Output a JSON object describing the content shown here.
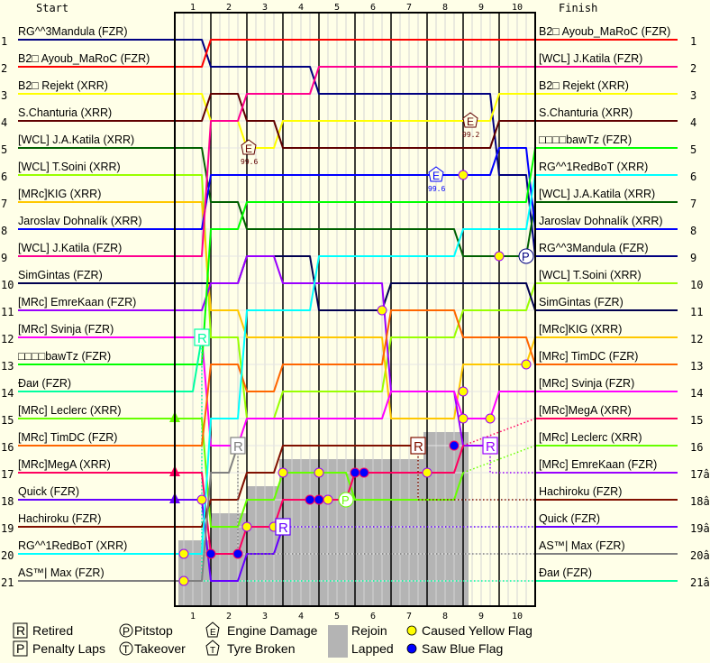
{
  "chart_data": {
    "type": "line",
    "header_start": "Start",
    "header_finish": "Finish",
    "x_ticks": [
      "1",
      "2",
      "3",
      "4",
      "5",
      "6",
      "7",
      "8",
      "9",
      "10"
    ],
    "laps": 10,
    "positions": 21,
    "grid": true,
    "y_inverted": true,
    "colors": {
      "background": "#FFFFE8",
      "lapped": "#B4B4B4",
      "yellow_flag": "#FFFF00",
      "blue_flag": "#0000FF"
    },
    "drivers": [
      {
        "name": "RG^^3Mandula (FZR)",
        "color": "#000080",
        "positions": [
          1,
          2,
          2,
          2,
          3,
          3,
          3,
          3,
          3,
          6,
          9
        ]
      },
      {
        "name": "B2□ Ayoub_MaRoC (FZR)",
        "color": "#FF0000",
        "positions": [
          2,
          1,
          1,
          1,
          1,
          1,
          1,
          1,
          1,
          1,
          1
        ]
      },
      {
        "name": "B2□ Rejekt (XRR)",
        "color": "#FFFF00",
        "positions": [
          3,
          4,
          5,
          4,
          4,
          4,
          4,
          4,
          4,
          3,
          3
        ]
      },
      {
        "name": "S.Chanturia (XRR)",
        "color": "#600000",
        "positions": [
          4,
          3,
          4,
          5,
          5,
          5,
          5,
          5,
          5,
          4,
          4
        ]
      },
      {
        "name": "[WCL] J.A.Katila (XRR)",
        "color": "#006000",
        "positions": [
          5,
          7,
          8,
          8,
          8,
          8,
          8,
          8,
          9,
          9,
          7
        ]
      },
      {
        "name": "[WCL] T.Soini (XRR)",
        "color": "#99FF00",
        "positions": [
          6,
          12,
          15,
          14,
          14,
          14,
          12,
          12,
          11,
          11,
          10
        ]
      },
      {
        "name": "[MRc]KIG (XRR)",
        "color": "#FFC800",
        "positions": [
          7,
          11,
          12,
          12,
          12,
          12,
          15,
          15,
          13,
          13,
          12
        ]
      },
      {
        "name": "Jaroslav Dohnalík (XRR)",
        "color": "#0000FF",
        "positions": [
          8,
          6,
          6,
          6,
          6,
          6,
          6,
          6,
          6,
          5,
          8
        ]
      },
      {
        "name": "[WCL] J.Katila (FZR)",
        "color": "#FF0090",
        "positions": [
          9,
          4,
          3,
          3,
          2,
          2,
          2,
          2,
          2,
          2,
          2
        ]
      },
      {
        "name": "SimGintas (FZR)",
        "color": "#000050",
        "positions": [
          10,
          10,
          9,
          9,
          11,
          11,
          10,
          10,
          10,
          10,
          11
        ]
      },
      {
        "name": "[MRc] EmreKaan (FZR)",
        "color": "#9900FF",
        "positions": [
          11,
          10,
          9,
          10,
          10,
          10,
          14,
          14,
          16
        ],
        "stop": {
          "lap": 8.75,
          "pos": 16,
          "reason": "retired"
        },
        "finish": 17
      },
      {
        "name": "[MRc] Svinja (FZR)",
        "color": "#FF00FF",
        "positions": [
          12,
          16,
          15,
          15,
          15,
          15,
          14,
          14,
          15,
          14,
          14
        ]
      },
      {
        "name": "□□□□bawTz (FZR)",
        "color": "#00FF00",
        "positions": [
          13,
          8,
          7,
          7,
          7,
          7,
          7,
          7,
          7,
          7,
          5
        ]
      },
      {
        "name": "Đaи (FZR)",
        "color": "#00FFA0",
        "positions": [
          14
        ],
        "stop": {
          "lap": 0.75,
          "pos": 12,
          "reason": "retired"
        },
        "finish": 21
      },
      {
        "name": "[MRc] Leclerc (XRR)",
        "color": "#66FF00",
        "positions": [
          15,
          19,
          18,
          17,
          17,
          18,
          18,
          18,
          17
        ],
        "stop": {
          "lap": 8,
          "pos": 17,
          "reason": "lapped"
        },
        "finish": 16,
        "rejoin": true
      },
      {
        "name": "[MRc] TimDC (FZR)",
        "color": "#FF6600",
        "positions": [
          16,
          13,
          14,
          13,
          13,
          13,
          11,
          11,
          12,
          12,
          13
        ]
      },
      {
        "name": "[MRc]MegA (XRR)",
        "color": "#FF0060",
        "positions": [
          17,
          20,
          19,
          18,
          18,
          17,
          17,
          17,
          16
        ],
        "stop": {
          "lap": 8,
          "pos": 16,
          "reason": "lapped"
        },
        "finish": 15,
        "rejoin": true
      },
      {
        "name": "Quick (FZR)",
        "color": "#6600FF",
        "positions": [
          18,
          21,
          20,
          19
        ],
        "stop": {
          "lap": 3,
          "pos": 19,
          "reason": "retired"
        },
        "finish": 19,
        "rejoin": true
      },
      {
        "name": "Hachiroku (FZR)",
        "color": "#801000",
        "positions": [
          19,
          18,
          17,
          16,
          16,
          16,
          16
        ],
        "stop": {
          "lap": 6.75,
          "pos": 16,
          "reason": "retired"
        },
        "finish": 18
      },
      {
        "name": "RG^^1RedBoT (XRR)",
        "color": "#00FFFF",
        "positions": [
          20,
          15,
          11,
          11,
          9,
          9,
          9,
          9,
          8,
          8,
          6
        ]
      },
      {
        "name": "AS™| Max (FZR)",
        "color": "#808080",
        "positions": [
          21,
          17
        ],
        "stop": {
          "lap": 1.75,
          "pos": 16,
          "reason": "retired"
        },
        "finish": 20
      }
    ],
    "finish_order": [
      {
        "label": "1",
        "name": "B2□ Ayoub_MaRoC (FZR)",
        "color": "#FF0000"
      },
      {
        "label": "2",
        "name": "[WCL] J.Katila (FZR)",
        "color": "#FF0090"
      },
      {
        "label": "3",
        "name": "B2□ Rejekt (XRR)",
        "color": "#FFFF00"
      },
      {
        "label": "4",
        "name": "S.Chanturia (XRR)",
        "color": "#600000"
      },
      {
        "label": "5",
        "name": "□□□□bawTz (FZR)",
        "color": "#00FF00"
      },
      {
        "label": "6",
        "name": "RG^^1RedBoT (XRR)",
        "color": "#00FFFF"
      },
      {
        "label": "7",
        "name": "[WCL] J.A.Katila (XRR)",
        "color": "#006000"
      },
      {
        "label": "8",
        "name": "Jaroslav Dohnalík (XRR)",
        "color": "#0000FF"
      },
      {
        "label": "9",
        "name": "RG^^3Mandula (FZR)",
        "color": "#000080"
      },
      {
        "label": "10",
        "name": "[WCL] T.Soini (XRR)",
        "color": "#99FF00"
      },
      {
        "label": "11",
        "name": "SimGintas (FZR)",
        "color": "#000050"
      },
      {
        "label": "12",
        "name": "[MRc]KIG (XRR)",
        "color": "#FFC800"
      },
      {
        "label": "13",
        "name": "[MRc] TimDC (FZR)",
        "color": "#FF6600"
      },
      {
        "label": "14",
        "name": "[MRc] Svinja (FZR)",
        "color": "#FF00FF"
      },
      {
        "label": "15",
        "name": "[MRc]MegA (XRR)",
        "color": "#FF0060"
      },
      {
        "label": "16",
        "name": "[MRc] Leclerc (XRR)",
        "color": "#66FF00"
      },
      {
        "label": "17â",
        "name": "[MRc] EmreKaan (FZR)",
        "color": "#9900FF"
      },
      {
        "label": "18â",
        "name": "Hachiroku (FZR)",
        "color": "#801000"
      },
      {
        "label": "19â",
        "name": "Quick (FZR)",
        "color": "#6600FF"
      },
      {
        "label": "20â",
        "name": "AS™| Max (FZR)",
        "color": "#808080"
      },
      {
        "label": "21â",
        "name": "Đaи (FZR)",
        "color": "#00FFA0"
      }
    ],
    "lapped_region": [
      {
        "from_lap": 0.1,
        "to_lap": 1,
        "from_pos": 20
      },
      {
        "from_lap": 1,
        "to_lap": 2,
        "from_pos": 19
      },
      {
        "from_lap": 2,
        "to_lap": 2.9,
        "from_pos": 18
      },
      {
        "from_lap": 2.9,
        "to_lap": 6.9,
        "from_pos": 17
      },
      {
        "from_lap": 6.9,
        "to_lap": 8.15,
        "from_pos": 16
      }
    ],
    "markers": [
      {
        "type": "engine",
        "lap": 2.05,
        "pos": 5,
        "color": "#600000",
        "label": "99.6"
      },
      {
        "type": "engine",
        "lap": 8.2,
        "pos": 4,
        "color": "#600000",
        "label": "99.2"
      },
      {
        "type": "engine",
        "lap": 7.25,
        "pos": 6,
        "color": "#0000FF",
        "label": "99.6"
      },
      {
        "type": "pitstop",
        "lap": 9.75,
        "pos": 9,
        "color": "#000080",
        "label": "P"
      },
      {
        "type": "pitstop",
        "lap": 4.75,
        "pos": 18,
        "color": "#66FF00",
        "label": "P"
      },
      {
        "type": "yellow",
        "lap": 8,
        "pos": 6
      },
      {
        "type": "yellow",
        "lap": 9,
        "pos": 9
      },
      {
        "type": "yellow",
        "lap": 5.75,
        "pos": 11
      },
      {
        "type": "yellow",
        "lap": 9.75,
        "pos": 13
      },
      {
        "type": "yellow",
        "lap": 8,
        "pos": 14
      },
      {
        "type": "yellow",
        "lap": 8,
        "pos": 15
      },
      {
        "type": "yellow",
        "lap": 0.75,
        "pos": 18
      },
      {
        "type": "yellow",
        "lap": 0.25,
        "pos": 20
      },
      {
        "type": "yellow",
        "lap": 0.25,
        "pos": 21
      },
      {
        "type": "yellow",
        "lap": 2,
        "pos": 19
      },
      {
        "type": "yellow",
        "lap": 3,
        "pos": 17
      },
      {
        "type": "yellow",
        "lap": 4,
        "pos": 17
      },
      {
        "type": "yellow",
        "lap": 4.25,
        "pos": 18
      },
      {
        "type": "yellow",
        "lap": 7,
        "pos": 17
      },
      {
        "type": "yellow",
        "lap": 2.75,
        "pos": 19
      },
      {
        "type": "blue",
        "lap": 1,
        "pos": 20
      },
      {
        "type": "blue",
        "lap": 1.75,
        "pos": 20
      },
      {
        "type": "blue",
        "lap": 3.75,
        "pos": 18
      },
      {
        "type": "blue",
        "lap": 4,
        "pos": 18
      },
      {
        "type": "blue",
        "lap": 5,
        "pos": 17
      },
      {
        "type": "blue",
        "lap": 5.25,
        "pos": 17
      },
      {
        "type": "blue",
        "lap": 7.75,
        "pos": 16
      }
    ],
    "retired_symbol": "R",
    "legend": [
      {
        "symbol": "R",
        "label": "Retired",
        "kind": "box"
      },
      {
        "symbol": "P",
        "label": "Pitstop",
        "kind": "circle"
      },
      {
        "symbol": "E",
        "label": "Engine Damage",
        "kind": "pentagon"
      },
      {
        "symbol": "▲",
        "label": "Rejoin",
        "kind": "text"
      },
      {
        "symbol": "",
        "label": "Caused Yellow Flag",
        "kind": "yellow"
      },
      {
        "symbol": "P",
        "label": "Penalty Laps",
        "kind": "box"
      },
      {
        "symbol": "T",
        "label": "Takeover",
        "kind": "circle"
      },
      {
        "symbol": "T",
        "label": "Tyre Broken",
        "kind": "pentagon"
      },
      {
        "symbol": "",
        "label": "Lapped",
        "kind": "grey"
      },
      {
        "symbol": "",
        "label": "Saw Blue Flag",
        "kind": "blue"
      }
    ]
  }
}
